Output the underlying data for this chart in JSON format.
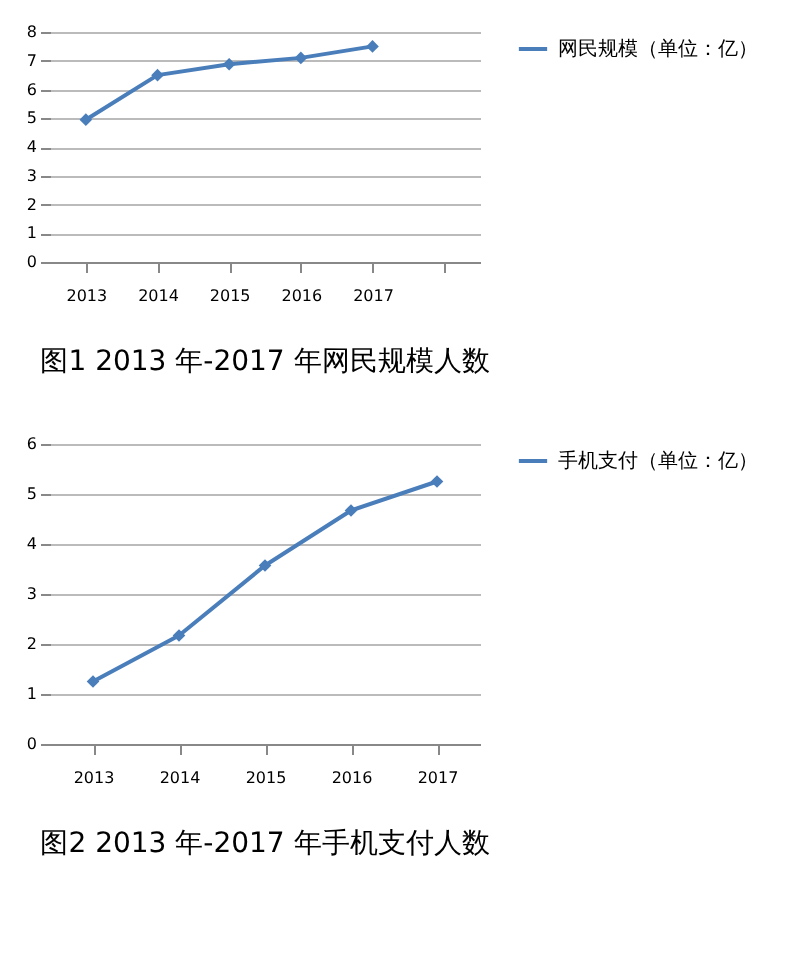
{
  "chart_data": [
    {
      "type": "line",
      "title": "图1 2013 年-2017 年网民规模人数",
      "categories": [
        "2013",
        "2014",
        "2015",
        "2016",
        "2017",
        null
      ],
      "series": [
        {
          "name": "网民规模（单位：亿）",
          "color": "#4a7ebb",
          "values": [
            4.95,
            6.5,
            6.88,
            7.1,
            7.5,
            null
          ]
        }
      ],
      "ylim": [
        0,
        8
      ],
      "yticks": [
        0,
        1,
        2,
        3,
        4,
        5,
        6,
        7,
        8
      ],
      "grid": "y",
      "legend": "right",
      "marker": "diamond",
      "line_style": "solid"
    },
    {
      "type": "line",
      "title": "图2 2013 年-2017 年手机支付人数",
      "categories": [
        "2013",
        "2014",
        "2015",
        "2016",
        "2017"
      ],
      "series": [
        {
          "name": "手机支付（单位：亿）",
          "color": "#4a7ebb",
          "values": [
            1.25,
            2.17,
            3.57,
            4.67,
            5.25
          ]
        }
      ],
      "ylim": [
        0,
        6
      ],
      "yticks": [
        0,
        1,
        2,
        3,
        4,
        5,
        6
      ],
      "grid": "y",
      "legend": "right",
      "marker": "diamond",
      "line_style": "solid"
    }
  ]
}
